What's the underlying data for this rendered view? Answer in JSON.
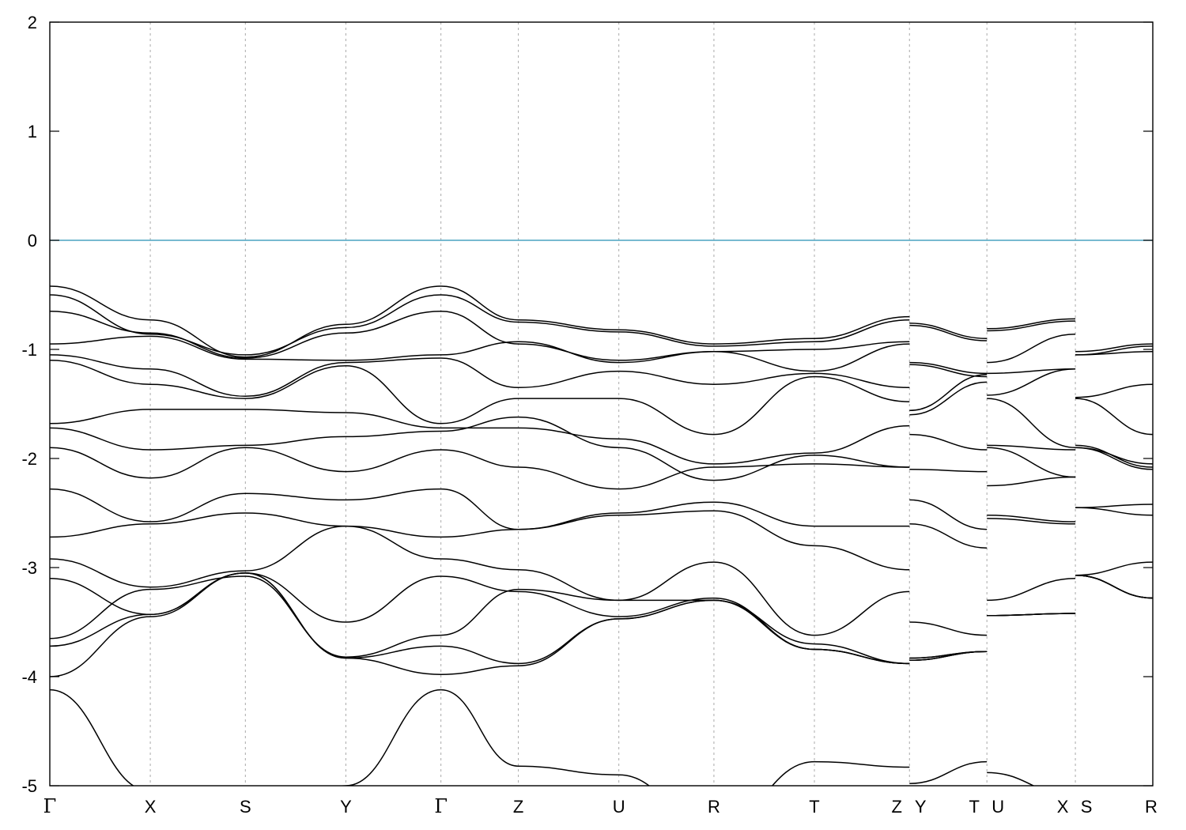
{
  "chart_data": {
    "type": "line",
    "title": "",
    "xlabel": "",
    "ylabel": "",
    "ylim": [
      -5,
      2
    ],
    "yticks": [
      2,
      1,
      0,
      -1,
      -2,
      -3,
      -4,
      -5
    ],
    "kpath": [
      {
        "label": "Γ",
        "x": 0.0
      },
      {
        "label": "X",
        "x": 0.0911
      },
      {
        "label": "S",
        "x": 0.1773
      },
      {
        "label": "Y",
        "x": 0.2684
      },
      {
        "label": "Γ",
        "x": 0.3546
      },
      {
        "label": "Z",
        "x": 0.4248
      },
      {
        "label": "U",
        "x": 0.5159
      },
      {
        "label": "R",
        "x": 0.6021
      },
      {
        "label": "T",
        "x": 0.6932
      },
      {
        "label": "Z",
        "x": 0.7794
      },
      {
        "label": "Y",
        "x": 0.7794
      },
      {
        "label": "T",
        "x": 0.8496
      },
      {
        "label": "U",
        "x": 0.8496
      },
      {
        "label": "X",
        "x": 0.9298
      },
      {
        "label": "S",
        "x": 0.9298
      },
      {
        "label": "R",
        "x": 1.0
      }
    ],
    "fermi_level": 0,
    "fermi_color": "#4aa3c0",
    "band_color": "#000000",
    "series": [
      {
        "x": [
          0,
          0.0911,
          0.1773,
          0.2684,
          0.3546,
          0.4248,
          0.5159,
          0.6021,
          0.6932,
          0.7794,
          0.7794,
          0.8496,
          0.8496,
          0.9298,
          0.9298,
          1.0
        ],
        "values": [
          -0.42,
          -0.73,
          -1.07,
          -0.77,
          -0.42,
          -0.73,
          -0.82,
          -0.95,
          -0.9,
          -0.7,
          -0.76,
          -0.9,
          -0.81,
          -0.72,
          -1.02,
          -0.95
        ]
      },
      {
        "x": [
          0,
          0.0911,
          0.1773,
          0.2684,
          0.3546,
          0.4248,
          0.5159,
          0.6021,
          0.6932,
          0.7794,
          0.7794,
          0.8496,
          0.8496,
          0.9298,
          0.9298,
          1.0
        ],
        "values": [
          -0.5,
          -0.86,
          -1.05,
          -0.8,
          -0.5,
          -0.75,
          -0.84,
          -0.97,
          -0.93,
          -0.73,
          -0.78,
          -0.92,
          -0.83,
          -0.74,
          -1.05,
          -0.97
        ]
      },
      {
        "x": [
          0,
          0.0911,
          0.1773,
          0.2684,
          0.3546,
          0.4248,
          0.5159,
          0.6021,
          0.6932,
          0.7794,
          0.7794,
          0.8496,
          0.8496,
          0.9298,
          0.9298,
          1.0
        ],
        "values": [
          -0.65,
          -0.85,
          -1.08,
          -0.85,
          -0.65,
          -0.95,
          -1.1,
          -1.02,
          -1.0,
          -0.93,
          -1.12,
          -1.22,
          -1.12,
          -0.86,
          -1.05,
          -1.02
        ]
      },
      {
        "x": [
          0,
          0.0911,
          0.1773,
          0.2684,
          0.3546,
          0.4248,
          0.5159,
          0.6021,
          0.6932,
          0.7794,
          0.7794,
          0.8496,
          0.8496,
          0.9298,
          0.9298,
          1.0
        ],
        "values": [
          -0.95,
          -0.88,
          -1.09,
          -1.1,
          -1.05,
          -0.93,
          -1.12,
          -1.02,
          -1.2,
          -0.95,
          -1.14,
          -1.25,
          -1.22,
          -1.18,
          -1.44,
          -1.32
        ]
      },
      {
        "x": [
          0,
          0.0911,
          0.1773,
          0.2684,
          0.3546,
          0.4248,
          0.5159,
          0.6021,
          0.6932,
          0.7794,
          0.7794,
          0.8496,
          0.8496,
          0.9298,
          0.9298,
          1.0
        ],
        "values": [
          -1.05,
          -1.18,
          -1.43,
          -1.12,
          -1.08,
          -1.35,
          -1.2,
          -1.32,
          -1.22,
          -1.35,
          -1.56,
          -1.23,
          -1.42,
          -1.18,
          -1.45,
          -1.78
        ]
      },
      {
        "x": [
          0,
          0.0911,
          0.1773,
          0.2684,
          0.3546,
          0.4248,
          0.5159,
          0.6021,
          0.6932,
          0.7794,
          0.7794,
          0.8496,
          0.8496,
          0.9298,
          0.9298,
          1.0
        ],
        "values": [
          -1.1,
          -1.32,
          -1.45,
          -1.15,
          -1.68,
          -1.45,
          -1.45,
          -1.78,
          -1.25,
          -1.48,
          -1.6,
          -1.3,
          -1.45,
          -1.9,
          -1.9,
          -2.05
        ]
      },
      {
        "x": [
          0,
          0.0911,
          0.1773,
          0.2684,
          0.3546,
          0.4248,
          0.5159,
          0.6021,
          0.6932,
          0.7794,
          0.7794,
          0.8496,
          0.8496,
          0.9298,
          0.9298,
          1.0
        ],
        "values": [
          -1.68,
          -1.55,
          -1.55,
          -1.58,
          -1.72,
          -1.72,
          -1.82,
          -2.05,
          -1.95,
          -1.7,
          -1.78,
          -1.92,
          -1.88,
          -1.92,
          -1.88,
          -2.08
        ]
      },
      {
        "x": [
          0,
          0.0911,
          0.1773,
          0.2684,
          0.3546,
          0.4248,
          0.5159,
          0.6021,
          0.6932,
          0.7794,
          0.7794,
          0.8496,
          0.8496,
          0.9298,
          0.9298,
          1.0
        ],
        "values": [
          -1.72,
          -1.92,
          -1.88,
          -1.8,
          -1.75,
          -1.62,
          -1.9,
          -2.2,
          -1.97,
          -2.08,
          -2.1,
          -2.12,
          -1.9,
          -2.17,
          -1.9,
          -2.1
        ]
      },
      {
        "x": [
          0,
          0.0911,
          0.1773,
          0.2684,
          0.3546,
          0.4248,
          0.5159,
          0.6021,
          0.6932,
          0.7794,
          0.7794,
          0.8496,
          0.8496,
          0.9298,
          0.9298,
          1.0
        ],
        "values": [
          -1.9,
          -2.18,
          -1.9,
          -2.12,
          -1.92,
          -2.08,
          -2.28,
          -2.08,
          -2.05,
          -2.08,
          -2.38,
          -2.65,
          -2.25,
          -2.17,
          -2.45,
          -2.42
        ]
      },
      {
        "x": [
          0,
          0.0911,
          0.1773,
          0.2684,
          0.3546,
          0.4248,
          0.5159,
          0.6021,
          0.6932,
          0.7794,
          0.7794,
          0.8496,
          0.8496,
          0.9298,
          0.9298,
          1.0
        ],
        "values": [
          -2.28,
          -2.58,
          -2.32,
          -2.38,
          -2.28,
          -2.65,
          -2.5,
          -2.4,
          -2.62,
          -2.62,
          -2.6,
          -2.82,
          -2.52,
          -2.58,
          -2.45,
          -2.52
        ]
      },
      {
        "x": [
          0,
          0.0911,
          0.1773,
          0.2684,
          0.3546,
          0.4248,
          0.5159,
          0.6021,
          0.6932,
          0.7794,
          0.7794,
          0.8496,
          0.8496,
          0.9298,
          0.9298,
          1.0
        ],
        "values": [
          -2.72,
          -2.6,
          -2.5,
          -2.62,
          -2.72,
          -2.65,
          -2.52,
          -2.48,
          -2.8,
          -3.02,
          -3.5,
          -3.62,
          -2.55,
          -2.6,
          -3.07,
          -2.95
        ]
      },
      {
        "x": [
          0,
          0.0911,
          0.1773,
          0.2684,
          0.3546,
          0.4248,
          0.5159,
          0.6021,
          0.6932,
          0.7794,
          0.7794,
          0.8496,
          0.8496,
          0.9298,
          0.9298,
          1.0
        ],
        "values": [
          -2.92,
          -3.18,
          -3.03,
          -2.62,
          -2.92,
          -3.02,
          -3.3,
          -2.95,
          -3.62,
          -3.22,
          -3.83,
          -3.77,
          -3.3,
          -3.1,
          -3.07,
          -3.28
        ]
      },
      {
        "x": [
          0,
          0.0911,
          0.1773,
          0.2684,
          0.3546,
          0.4248,
          0.5159,
          0.6021,
          0.6932,
          0.7794,
          0.7794,
          0.8496,
          0.8496,
          0.9298,
          0.9298,
          1.0
        ],
        "values": [
          -3.1,
          -3.43,
          -3.05,
          -3.5,
          -3.08,
          -3.22,
          -3.45,
          -3.28,
          -3.75,
          -3.88,
          -3.83,
          -3.77,
          -3.44,
          -3.42,
          -3.07,
          -3.28
        ]
      },
      {
        "x": [
          0,
          0.0911,
          0.1773,
          0.2684,
          0.3546,
          0.4248,
          0.5159,
          0.6021,
          0.6932,
          0.7794,
          0.7794,
          0.8496,
          0.8496,
          0.9298,
          0.9298,
          1.0
        ],
        "values": [
          -3.65,
          -3.2,
          -3.08,
          -3.82,
          -3.62,
          -3.2,
          -3.3,
          -3.3,
          -3.7,
          -3.88,
          -3.85,
          -3.77,
          -3.44,
          -3.42,
          -3.07,
          -3.28
        ]
      },
      {
        "x": [
          0,
          0.0911,
          0.1773,
          0.2684,
          0.3546,
          0.4248,
          0.5159,
          0.6021,
          0.6932,
          0.7794,
          0.7794,
          0.8496,
          0.8496,
          0.9298,
          0.9298,
          1.0
        ],
        "values": [
          -3.72,
          -3.43,
          -3.05,
          -3.83,
          -3.72,
          -3.88,
          -3.47,
          -3.3,
          -3.75,
          -3.88,
          -3.85,
          -3.77,
          -3.44,
          -3.42,
          -3.07,
          -3.28
        ]
      },
      {
        "x": [
          0,
          0.0911,
          0.1773,
          0.2684,
          0.3546,
          0.4248,
          0.5159,
          0.6021,
          0.6932,
          0.7794,
          0.7794,
          0.8496,
          0.8496,
          0.9298,
          0.9298,
          1.0
        ],
        "values": [
          -4.0,
          -3.45,
          -3.05,
          -3.83,
          -3.98,
          -3.9,
          -3.47,
          -3.3,
          -3.75,
          -3.88,
          -3.85,
          -3.77,
          -3.44,
          -3.42,
          -3.07,
          -3.28
        ]
      },
      {
        "x": [
          0,
          0.0911,
          0.1773,
          0.2684,
          0.3546,
          0.4248,
          0.5159,
          0.6021,
          0.6932,
          0.7794,
          0.7794,
          0.8496,
          0.8496,
          0.9298,
          0.9298,
          1.0
        ],
        "values": [
          -4.12,
          -5.05,
          -5.5,
          -5.0,
          -4.12,
          -4.82,
          -4.9,
          -5.4,
          -4.78,
          -4.83,
          -4.98,
          -4.78,
          -4.88,
          -5.1,
          -5.2,
          -5.2
        ]
      }
    ]
  }
}
